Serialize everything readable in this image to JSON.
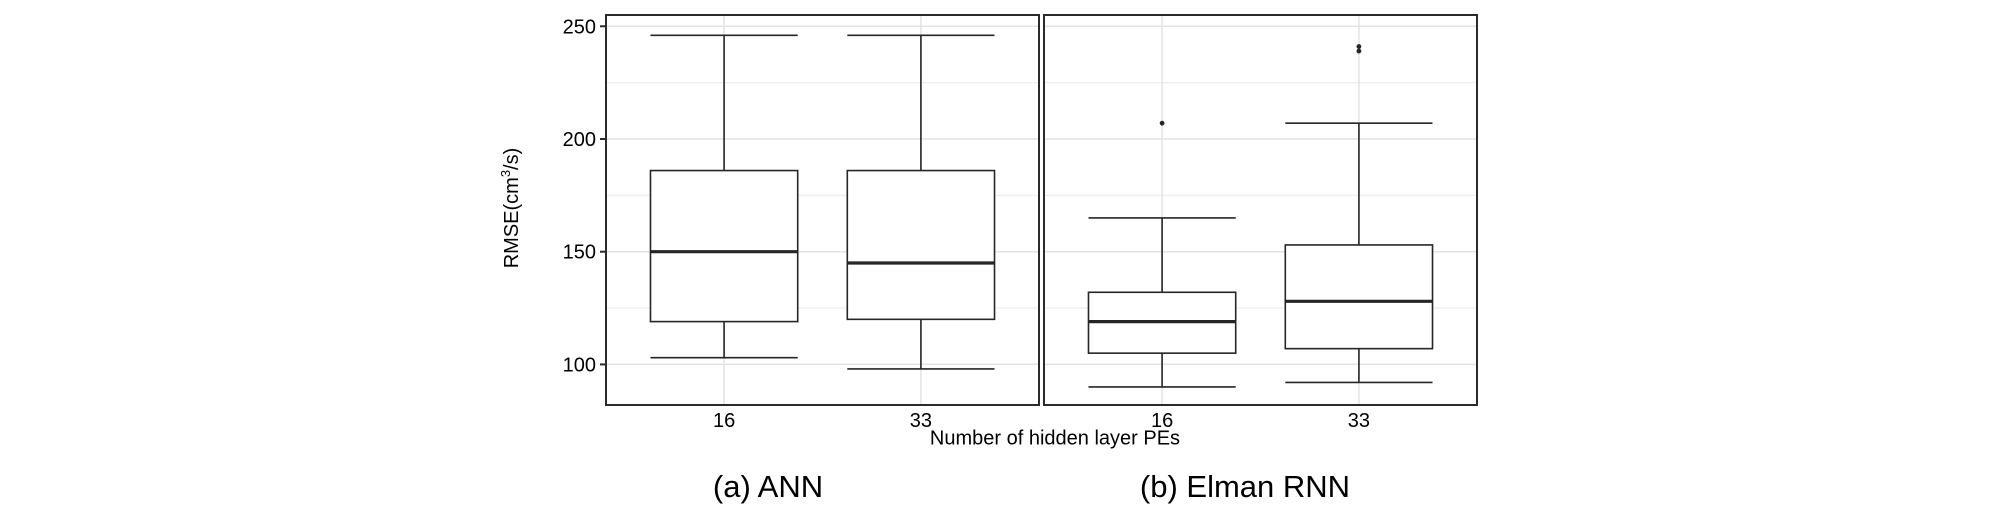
{
  "figure": {
    "y_axis": {
      "title_prefix": "RMSE(cm",
      "title_sup": "3",
      "title_suffix": "/s)"
    },
    "x_axis": {
      "title": "Number of hidden layer PEs"
    },
    "captions": {
      "a": "(a) ANN",
      "b": "(b) Elman RNN"
    },
    "colors": {
      "box_stroke": "#262626",
      "panel_border": "#2a2a2a",
      "grid_major": "#e3e3e3",
      "grid_minor": "#efefef",
      "background": "#ffffff"
    }
  },
  "chart_data": [
    {
      "type": "boxplot",
      "title": "(a) ANN",
      "xlabel": "Number of hidden layer PEs",
      "ylabel": "RMSE(cm3/s)",
      "categories": [
        "16",
        "33"
      ],
      "ylim": [
        82,
        255
      ],
      "yticks": [
        100,
        150,
        200,
        250
      ],
      "yticks_minor": [
        125,
        175,
        225
      ],
      "grid": true,
      "legend": false,
      "boxes": [
        {
          "category": "16",
          "lower_whisker": 103,
          "q1": 119,
          "median": 150,
          "q3": 186,
          "upper_whisker": 246,
          "outliers": []
        },
        {
          "category": "33",
          "lower_whisker": 98,
          "q1": 120,
          "median": 145,
          "q3": 186,
          "upper_whisker": 246,
          "outliers": []
        }
      ]
    },
    {
      "type": "boxplot",
      "title": "(b) Elman RNN",
      "xlabel": "Number of hidden layer PEs",
      "ylabel": "RMSE(cm3/s)",
      "categories": [
        "16",
        "33"
      ],
      "ylim": [
        82,
        255
      ],
      "yticks": [
        100,
        150,
        200,
        250
      ],
      "yticks_minor": [
        125,
        175,
        225
      ],
      "grid": true,
      "legend": false,
      "boxes": [
        {
          "category": "16",
          "lower_whisker": 90,
          "q1": 105,
          "median": 119,
          "q3": 132,
          "upper_whisker": 165,
          "outliers": [
            207
          ]
        },
        {
          "category": "33",
          "lower_whisker": 92,
          "q1": 107,
          "median": 128,
          "q3": 153,
          "upper_whisker": 207,
          "outliers": [
            239,
            241
          ]
        }
      ]
    }
  ]
}
